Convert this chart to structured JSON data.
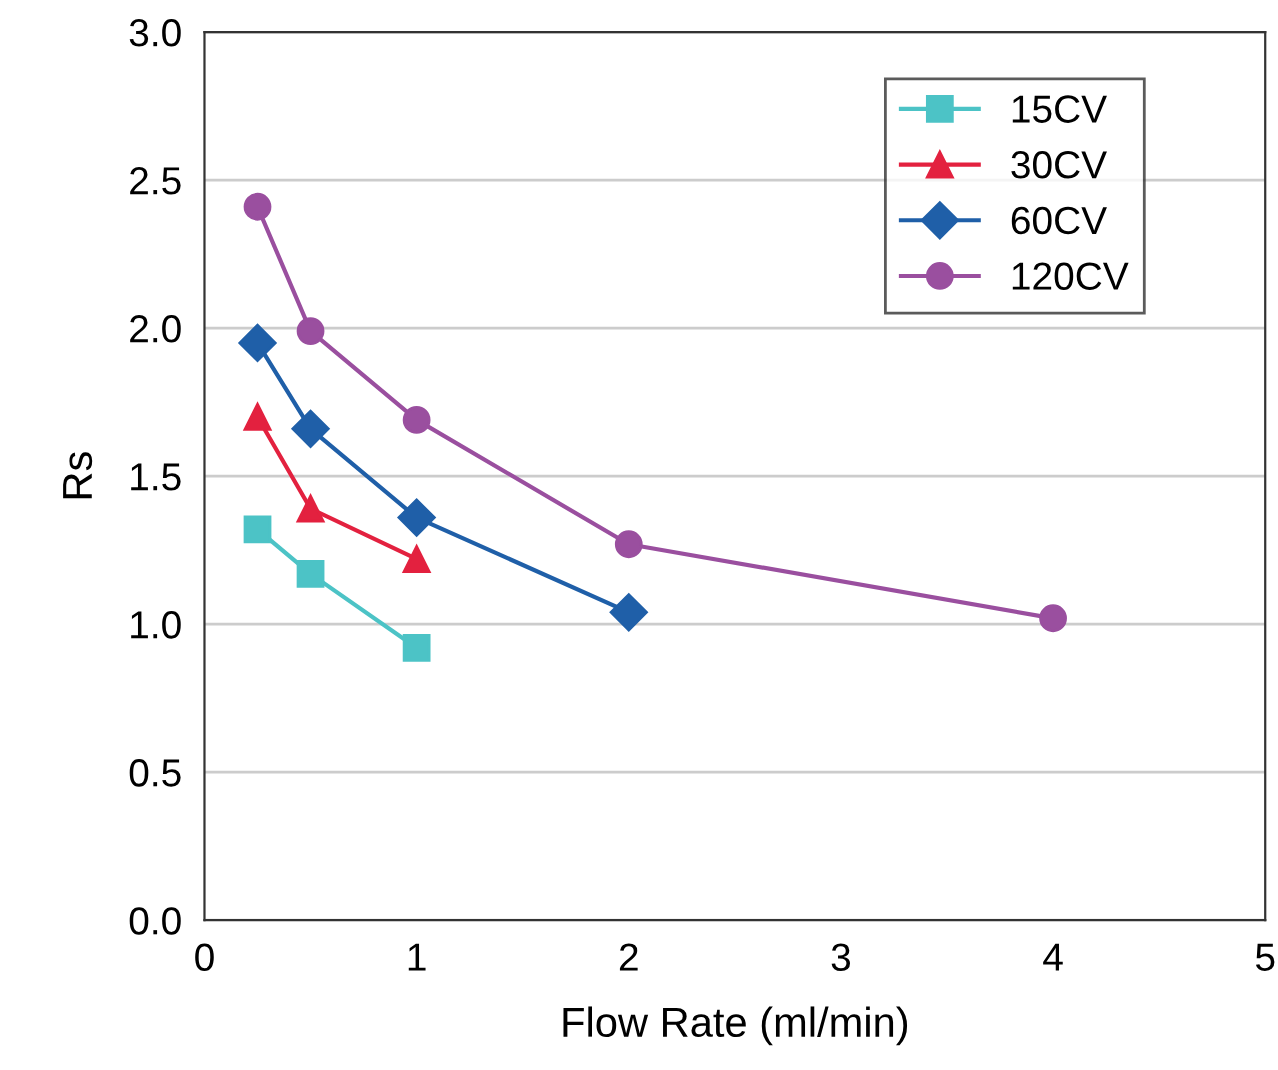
{
  "chart_data": {
    "type": "line",
    "xlabel": "Flow Rate (ml/min)",
    "ylabel": "Rs",
    "xlim": [
      0,
      5
    ],
    "xticks": [
      0,
      1,
      2,
      3,
      4,
      5
    ],
    "ylim": [
      0.0,
      3.0
    ],
    "yticks": [
      {
        "value": 0,
        "label": "0.0"
      },
      {
        "value": 0.5,
        "label": "0.5"
      },
      {
        "value": 1,
        "label": "1.0"
      },
      {
        "value": 1.5,
        "label": "1.5"
      },
      {
        "value": 2,
        "label": "2.0"
      },
      {
        "value": 2.5,
        "label": "2.5"
      },
      {
        "value": 3,
        "label": "3.0"
      }
    ],
    "grid": "y",
    "legend": "top right",
    "line_style": "solid",
    "series": [
      {
        "name": "15CV",
        "color": "#4cc3c6",
        "marker": "square",
        "x": [
          0.25,
          0.5,
          1
        ],
        "values": [
          1.32,
          1.17,
          0.92
        ]
      },
      {
        "name": "30CV",
        "color": "#e3213f",
        "marker": "triangle",
        "x": [
          0.25,
          0.5,
          1
        ],
        "values": [
          1.7,
          1.39,
          1.22
        ]
      },
      {
        "name": "60CV",
        "color": "#1f5fa8",
        "marker": "diamond",
        "x": [
          0.25,
          0.5,
          1,
          2
        ],
        "values": [
          1.95,
          1.66,
          1.36,
          1.04
        ]
      },
      {
        "name": "120CV",
        "color": "#9a4f9f",
        "marker": "circle",
        "x": [
          0.25,
          0.5,
          1,
          2,
          4
        ],
        "values": [
          2.41,
          1.99,
          1.69,
          1.27,
          1.02
        ]
      }
    ]
  }
}
